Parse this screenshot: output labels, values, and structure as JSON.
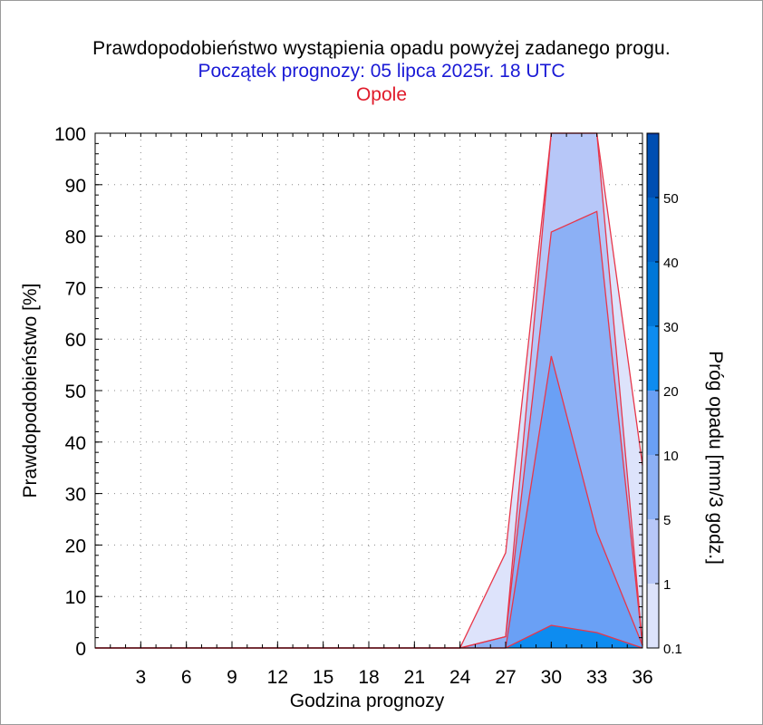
{
  "chart_data": {
    "type": "area",
    "title": "Prawdopodobieństwo wystąpienia opadu powyżej zadanego progu.",
    "subtitle": "Początek prognozy: 05 lipca 2025r. 18 UTC",
    "location": "Opole",
    "xlabel": "Godzina prognozy",
    "ylabel": "Prawdopodobieństwo [%]",
    "colorbar_label": "Próg opadu [mm/3 godz.]",
    "xlim": [
      0,
      36
    ],
    "ylim": [
      0,
      100
    ],
    "x_ticks": [
      3,
      6,
      9,
      12,
      15,
      18,
      21,
      24,
      27,
      30,
      33,
      36
    ],
    "y_ticks": [
      0,
      10,
      20,
      30,
      40,
      50,
      60,
      70,
      80,
      90,
      100
    ],
    "grid": true,
    "x": [
      0,
      3,
      6,
      9,
      12,
      15,
      18,
      21,
      24,
      27,
      30,
      33,
      36
    ],
    "series": [
      {
        "name": "0.1",
        "color": "#dde3fb",
        "values": [
          0,
          0,
          0,
          0,
          0,
          0,
          0,
          0,
          0,
          18.5,
          100,
          100,
          35.5
        ]
      },
      {
        "name": "1",
        "color": "#b7c7f8",
        "values": [
          0,
          0,
          0,
          0,
          0,
          0,
          0,
          0,
          0,
          2.2,
          100,
          100,
          0.5
        ]
      },
      {
        "name": "5",
        "color": "#8cb0f5",
        "values": [
          0,
          0,
          0,
          0,
          0,
          0,
          0,
          0,
          0,
          2.2,
          80.8,
          84.8,
          0.5
        ]
      },
      {
        "name": "10",
        "color": "#6aa0f5",
        "values": [
          0,
          0,
          0,
          0,
          0,
          0,
          0,
          0,
          0,
          0,
          56.7,
          22.5,
          0.5
        ]
      },
      {
        "name": "20",
        "color": "#0d8cf0",
        "values": [
          0,
          0,
          0,
          0,
          0,
          0,
          0,
          0,
          0,
          0,
          4.4,
          3.0,
          0
        ]
      }
    ],
    "colorbar": {
      "bounds": [
        0.1,
        1,
        5,
        10,
        20,
        30,
        40,
        50
      ],
      "tick_labels": [
        "0.1",
        "1",
        "5",
        "10",
        "20",
        "30",
        "40",
        "50"
      ],
      "colors": [
        "#dde3fb",
        "#b7c7f8",
        "#8cb0f5",
        "#6aa0f5",
        "#0d8cf0",
        "#0077d8",
        "#0062c8",
        "#004eb2"
      ],
      "top_color": "#0a3ca0"
    },
    "outline_color": "#e8364a"
  }
}
